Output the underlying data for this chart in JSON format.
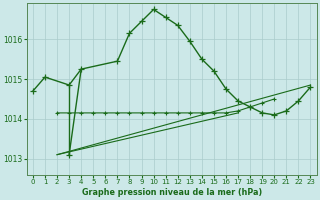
{
  "title": "Graphe pression niveau de la mer (hPa)",
  "bg_color": "#cce8e8",
  "grid_color": "#aacccc",
  "line_color": "#1a6b1a",
  "x_ticks": [
    0,
    1,
    2,
    3,
    4,
    5,
    6,
    7,
    8,
    9,
    10,
    11,
    12,
    13,
    14,
    15,
    16,
    17,
    18,
    19,
    20,
    21,
    22,
    23
  ],
  "y_ticks": [
    1013,
    1014,
    1015,
    1016
  ],
  "ylim": [
    1012.6,
    1016.9
  ],
  "xlim": [
    -0.5,
    23.5
  ],
  "line1_x": [
    0,
    1,
    3,
    4,
    7,
    8,
    9,
    10,
    11,
    12,
    13,
    14,
    15,
    16,
    17,
    18,
    19,
    20,
    21,
    22,
    23
  ],
  "line1_y": [
    1014.7,
    1015.05,
    1014.85,
    1015.25,
    1015.45,
    1016.15,
    1016.45,
    1016.75,
    1016.55,
    1016.35,
    1015.95,
    1015.5,
    1015.2,
    1014.75,
    1014.45,
    1014.3,
    1014.15,
    1014.1,
    1014.2,
    1014.45,
    1014.8
  ],
  "line2_x": [
    2,
    3,
    4,
    5,
    6,
    7,
    8,
    9,
    10,
    11,
    12,
    13,
    14,
    15,
    16,
    17,
    18,
    19,
    20
  ],
  "line2_y": [
    1014.15,
    1014.15,
    1014.15,
    1014.15,
    1014.15,
    1014.15,
    1014.15,
    1014.15,
    1014.15,
    1014.15,
    1014.15,
    1014.15,
    1014.15,
    1014.15,
    1014.15,
    1014.2,
    1014.3,
    1014.4,
    1014.5
  ],
  "line3_x": [
    2,
    23
  ],
  "line3_y": [
    1013.1,
    1014.85
  ],
  "line4_x": [
    2,
    17
  ],
  "line4_y": [
    1013.1,
    1014.15
  ],
  "point_3": [
    3,
    1013.1
  ]
}
